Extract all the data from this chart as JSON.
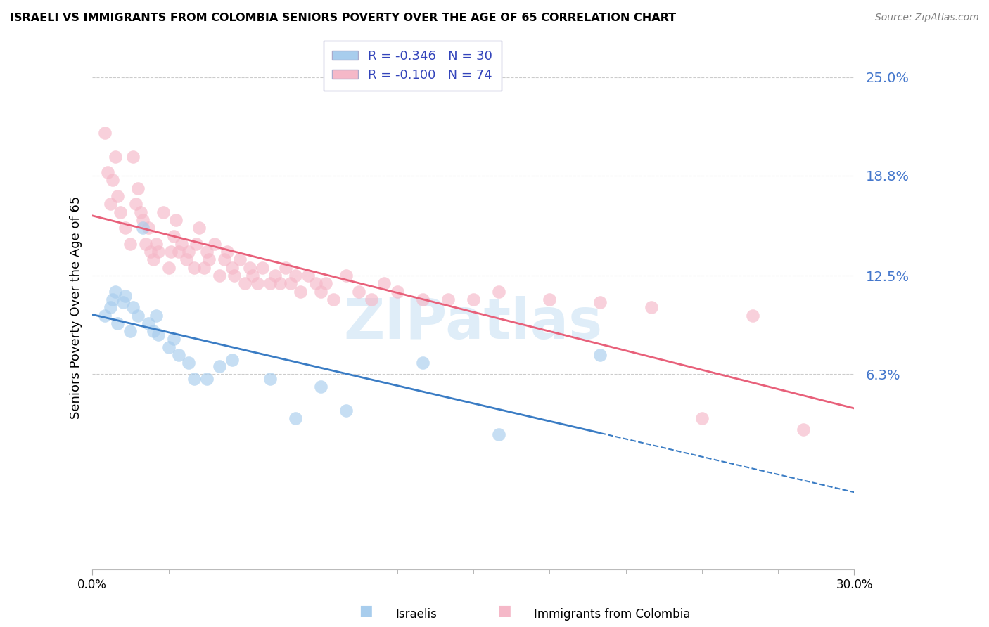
{
  "title": "ISRAELI VS IMMIGRANTS FROM COLOMBIA SENIORS POVERTY OVER THE AGE OF 65 CORRELATION CHART",
  "source": "Source: ZipAtlas.com",
  "ylabel": "Seniors Poverty Over the Age of 65",
  "xmin": 0.0,
  "xmax": 0.3,
  "ymin": -0.06,
  "ymax": 0.27,
  "yticks": [
    0.063,
    0.125,
    0.188,
    0.25
  ],
  "ytick_labels": [
    "6.3%",
    "12.5%",
    "18.8%",
    "25.0%"
  ],
  "xticks": [
    0.0,
    0.3
  ],
  "xtick_labels": [
    "0.0%",
    "30.0%"
  ],
  "r_israeli": -0.346,
  "n_israeli": 30,
  "r_colombia": -0.1,
  "n_colombia": 74,
  "color_israeli": "#A8CDED",
  "color_colombia": "#F5B8C8",
  "line_color_israeli": "#3A7CC4",
  "line_color_colombia": "#E8607A",
  "watermark": "ZIPatlas",
  "israeli_x": [
    0.005,
    0.007,
    0.008,
    0.009,
    0.01,
    0.012,
    0.013,
    0.015,
    0.016,
    0.018,
    0.02,
    0.022,
    0.024,
    0.025,
    0.026,
    0.03,
    0.032,
    0.034,
    0.038,
    0.04,
    0.045,
    0.05,
    0.055,
    0.07,
    0.08,
    0.09,
    0.1,
    0.13,
    0.16,
    0.2
  ],
  "israeli_y": [
    0.1,
    0.105,
    0.11,
    0.115,
    0.095,
    0.108,
    0.112,
    0.09,
    0.105,
    0.1,
    0.155,
    0.095,
    0.09,
    0.1,
    0.088,
    0.08,
    0.085,
    0.075,
    0.07,
    0.06,
    0.06,
    0.068,
    0.072,
    0.06,
    0.035,
    0.055,
    0.04,
    0.07,
    0.025,
    0.075
  ],
  "colombia_x": [
    0.005,
    0.006,
    0.007,
    0.008,
    0.009,
    0.01,
    0.011,
    0.013,
    0.015,
    0.016,
    0.017,
    0.018,
    0.019,
    0.02,
    0.021,
    0.022,
    0.023,
    0.024,
    0.025,
    0.026,
    0.028,
    0.03,
    0.031,
    0.032,
    0.033,
    0.034,
    0.035,
    0.037,
    0.038,
    0.04,
    0.041,
    0.042,
    0.044,
    0.045,
    0.046,
    0.048,
    0.05,
    0.052,
    0.053,
    0.055,
    0.056,
    0.058,
    0.06,
    0.062,
    0.063,
    0.065,
    0.067,
    0.07,
    0.072,
    0.074,
    0.076,
    0.078,
    0.08,
    0.082,
    0.085,
    0.088,
    0.09,
    0.092,
    0.095,
    0.1,
    0.105,
    0.11,
    0.115,
    0.12,
    0.13,
    0.14,
    0.15,
    0.16,
    0.18,
    0.2,
    0.22,
    0.24,
    0.26,
    0.28
  ],
  "colombia_y": [
    0.215,
    0.19,
    0.17,
    0.185,
    0.2,
    0.175,
    0.165,
    0.155,
    0.145,
    0.2,
    0.17,
    0.18,
    0.165,
    0.16,
    0.145,
    0.155,
    0.14,
    0.135,
    0.145,
    0.14,
    0.165,
    0.13,
    0.14,
    0.15,
    0.16,
    0.14,
    0.145,
    0.135,
    0.14,
    0.13,
    0.145,
    0.155,
    0.13,
    0.14,
    0.135,
    0.145,
    0.125,
    0.135,
    0.14,
    0.13,
    0.125,
    0.135,
    0.12,
    0.13,
    0.125,
    0.12,
    0.13,
    0.12,
    0.125,
    0.12,
    0.13,
    0.12,
    0.125,
    0.115,
    0.125,
    0.12,
    0.115,
    0.12,
    0.11,
    0.125,
    0.115,
    0.11,
    0.12,
    0.115,
    0.11,
    0.11,
    0.11,
    0.115,
    0.11,
    0.108,
    0.105,
    0.035,
    0.1,
    0.028
  ]
}
